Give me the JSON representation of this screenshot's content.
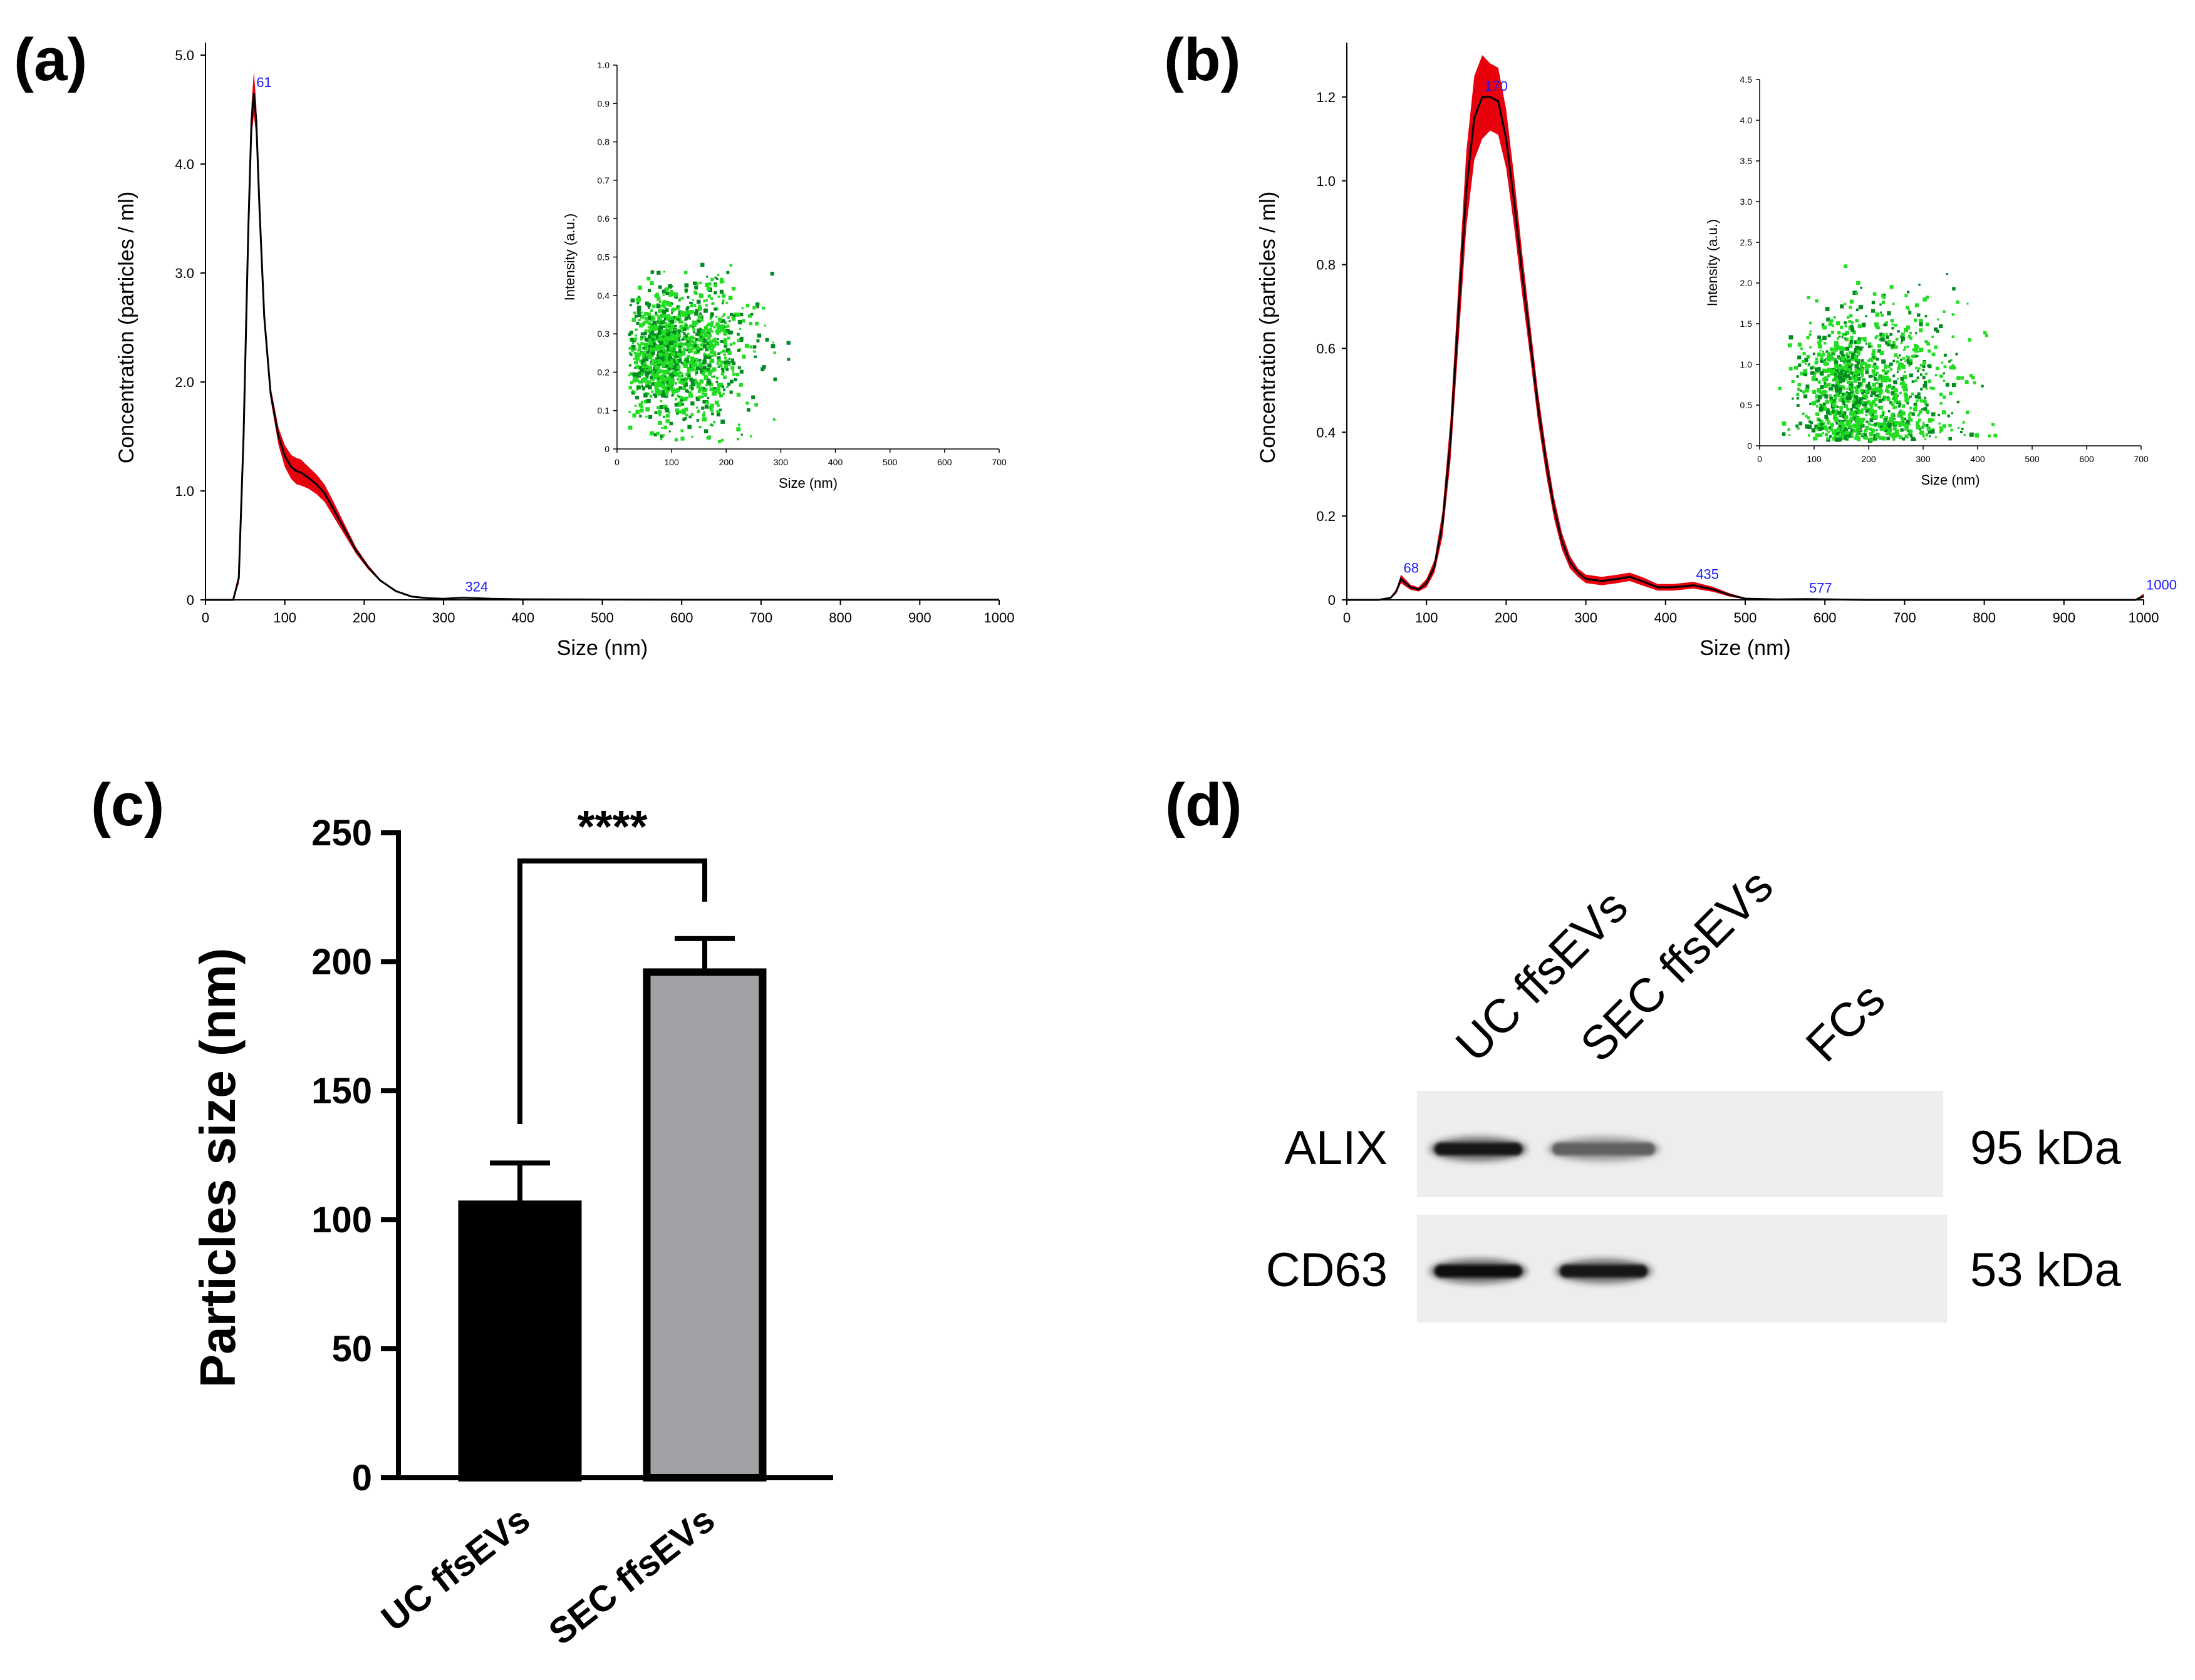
{
  "panel_labels": [
    "(a)",
    "(b)",
    "(c)",
    "(d)"
  ],
  "colors": {
    "band": "#e8000d",
    "line": "#000000",
    "scatter_light": "#22dd22",
    "scatter_dark": "#008c1e",
    "peak_text": "#1a1aff",
    "bar_uc": "#000000",
    "bar_sec": "#a0a1a5"
  },
  "chart_data": [
    {
      "id": "a",
      "type": "line",
      "title": "",
      "xlabel": "Size (nm)",
      "ylabel": "Concentration (particles / ml)",
      "xlim": [
        0,
        1000
      ],
      "ylim": [
        0,
        5.0
      ],
      "xticks": [
        0,
        100,
        200,
        300,
        400,
        500,
        600,
        700,
        800,
        900,
        1000
      ],
      "yticks": [
        0,
        1.0,
        2.0,
        3.0,
        4.0,
        5.0
      ],
      "ytick_labels": [
        "0",
        "1.0",
        "2.0",
        "3.0",
        "4.0",
        "5.0"
      ],
      "series": [
        {
          "name": "mean",
          "x": [
            0,
            35,
            42,
            48,
            54,
            58,
            61,
            64,
            68,
            74,
            82,
            92,
            100,
            108,
            115,
            120,
            130,
            140,
            150,
            160,
            175,
            190,
            205,
            220,
            240,
            260,
            280,
            300,
            324,
            360,
            400,
            500,
            600,
            700,
            800,
            900,
            1000
          ],
          "y": [
            0,
            0,
            0.2,
            1.5,
            3.4,
            4.4,
            4.65,
            4.4,
            3.6,
            2.6,
            1.9,
            1.5,
            1.32,
            1.22,
            1.18,
            1.17,
            1.12,
            1.06,
            0.98,
            0.85,
            0.65,
            0.45,
            0.3,
            0.18,
            0.08,
            0.03,
            0.015,
            0.01,
            0.02,
            0.01,
            0.005,
            0.003,
            0.002,
            0.001,
            0.001,
            0.001,
            0.001
          ],
          "err": [
            0,
            0,
            0.05,
            0.1,
            0.12,
            0.15,
            0.2,
            0.15,
            0.1,
            0.08,
            0.06,
            0.08,
            0.1,
            0.11,
            0.12,
            0.12,
            0.1,
            0.09,
            0.08,
            0.07,
            0.05,
            0.03,
            0.02,
            0.01,
            0.005,
            0.002,
            0,
            0,
            0,
            0,
            0,
            0,
            0,
            0,
            0,
            0,
            0
          ]
        }
      ],
      "peak_labels": [
        {
          "x": 61,
          "y": 4.65,
          "text": "61"
        },
        {
          "x": 324,
          "y": 0.02,
          "text": "324"
        }
      ],
      "inset": {
        "xlabel": "Size (nm)",
        "ylabel": "Intensity (a.u.)",
        "xlim": [
          0,
          700
        ],
        "ylim": [
          0,
          1.0
        ],
        "xticks": [
          0,
          100,
          200,
          300,
          400,
          500,
          600,
          700
        ],
        "yticks": [
          0,
          0.1,
          0.2,
          0.3,
          0.4,
          0.5,
          0.6,
          0.7,
          0.8,
          0.9,
          1.0
        ],
        "ytick_labels": [
          "0",
          "0.1",
          "0.2",
          "0.3",
          "0.4",
          "0.5",
          "0.6",
          "0.7",
          "0.8",
          "0.9",
          "1.0"
        ],
        "cloud": {
          "x_center": 100,
          "x_spread": 70,
          "y_center": 0.25,
          "y_spread": 0.09,
          "x_min": 20,
          "n_points": 1400
        }
      }
    },
    {
      "id": "b",
      "type": "line",
      "title": "",
      "xlabel": "Size (nm)",
      "ylabel": "Concentration (particles / ml)",
      "xlim": [
        0,
        1000
      ],
      "ylim": [
        0,
        1.3
      ],
      "xticks": [
        0,
        100,
        200,
        300,
        400,
        500,
        600,
        700,
        800,
        900,
        1000
      ],
      "yticks": [
        0,
        0.2,
        0.4,
        0.6,
        0.8,
        1.0,
        1.2
      ],
      "ytick_labels": [
        "0",
        "0.2",
        "0.4",
        "0.6",
        "0.8",
        "1.0",
        "1.2"
      ],
      "series": [
        {
          "name": "mean",
          "x": [
            0,
            40,
            55,
            62,
            68,
            74,
            80,
            90,
            100,
            110,
            120,
            130,
            140,
            150,
            160,
            170,
            180,
            190,
            200,
            210,
            220,
            230,
            240,
            250,
            260,
            270,
            280,
            290,
            300,
            320,
            340,
            355,
            370,
            390,
            410,
            435,
            460,
            480,
            500,
            540,
            577,
            650,
            800,
            950,
            990,
            1000
          ],
          "y": [
            0,
            0,
            0.005,
            0.02,
            0.05,
            0.04,
            0.03,
            0.025,
            0.04,
            0.08,
            0.18,
            0.38,
            0.68,
            0.98,
            1.15,
            1.2,
            1.2,
            1.19,
            1.1,
            0.95,
            0.78,
            0.62,
            0.46,
            0.33,
            0.22,
            0.14,
            0.09,
            0.065,
            0.05,
            0.045,
            0.05,
            0.055,
            0.045,
            0.03,
            0.03,
            0.035,
            0.025,
            0.012,
            0.003,
            0.001,
            0.002,
            0,
            0,
            0,
            0,
            0.01
          ],
          "err": [
            0,
            0,
            0.002,
            0.005,
            0.01,
            0.008,
            0.006,
            0.005,
            0.01,
            0.015,
            0.03,
            0.05,
            0.07,
            0.09,
            0.1,
            0.1,
            0.08,
            0.08,
            0.07,
            0.06,
            0.05,
            0.04,
            0.035,
            0.03,
            0.025,
            0.02,
            0.015,
            0.01,
            0.01,
            0.01,
            0.01,
            0.01,
            0.01,
            0.008,
            0.008,
            0.008,
            0.006,
            0.004,
            0.002,
            0,
            0,
            0,
            0,
            0,
            0,
            0.005
          ]
        }
      ],
      "peak_labels": [
        {
          "x": 68,
          "y": 0.05,
          "text": "68"
        },
        {
          "x": 170,
          "y": 1.2,
          "text": "170"
        },
        {
          "x": 435,
          "y": 0.035,
          "text": "435"
        },
        {
          "x": 577,
          "y": 0.002,
          "text": "577"
        },
        {
          "x": 1000,
          "y": 0.01,
          "text": "1000"
        }
      ],
      "inset": {
        "xlabel": "Size (nm)",
        "ylabel": "Intensity (a.u.)",
        "xlim": [
          0,
          700
        ],
        "ylim": [
          0,
          4.5
        ],
        "xticks": [
          0,
          100,
          200,
          300,
          400,
          500,
          600,
          700
        ],
        "yticks": [
          0,
          0.5,
          1.0,
          1.5,
          2.0,
          2.5,
          3.0,
          3.5,
          4.0,
          4.5
        ],
        "ytick_labels": [
          "0",
          "0.5",
          "1.0",
          "1.5",
          "2.0",
          "2.5",
          "3.0",
          "3.5",
          "4.0",
          "4.5"
        ],
        "cloud": {
          "x_center": 180,
          "x_spread": 90,
          "y_center": 0.7,
          "y_spread": 0.45,
          "x_min": 30,
          "n_points": 1300
        }
      }
    },
    {
      "id": "c",
      "type": "bar",
      "title": "",
      "categories": [
        "UC ffsEVs",
        "SEC ffsEVs"
      ],
      "values": [
        106,
        196
      ],
      "errors": [
        16,
        13
      ],
      "ylabel": "Particles size (nm)",
      "xlabel": "",
      "ylim": [
        0,
        250
      ],
      "yticks": [
        0,
        50,
        100,
        150,
        200,
        250
      ],
      "significance": "****"
    }
  ],
  "western_blot": {
    "lanes": [
      "UC ffsEVs",
      "SEC ffsEVs",
      "FCs"
    ],
    "rows": [
      {
        "protein": "ALIX",
        "mw": "95 kDa",
        "intensities": [
          0.92,
          0.62,
          0.0
        ]
      },
      {
        "protein": "CD63",
        "mw": "53 kDa",
        "intensities": [
          0.95,
          0.9,
          0.0
        ]
      }
    ]
  }
}
